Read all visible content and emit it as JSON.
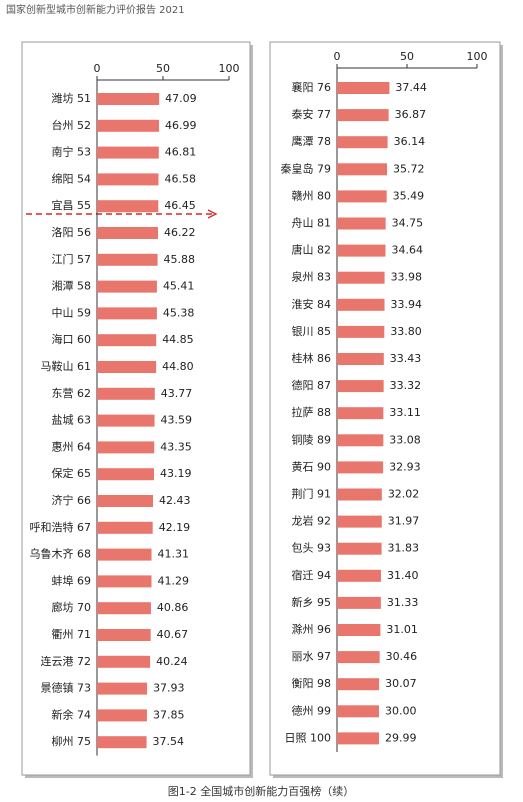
{
  "header": "国家创新型城市创新能力评价报告 2021",
  "caption": "图1-2   全国城市创新能力百强榜（续）",
  "chart_data": [
    {
      "type": "bar",
      "orientation": "horizontal",
      "color": "#e8766c",
      "categories": [
        "潍坊 51",
        "台州 52",
        "南宁 53",
        "绵阳 54",
        "宜昌 55",
        "洛阳 56",
        "江门 57",
        "湘潭 58",
        "中山 59",
        "海口 60",
        "马鞍山 61",
        "东营 62",
        "盐城 63",
        "惠州 64",
        "保定 65",
        "济宁 66",
        "呼和浩特 67",
        "乌鲁木齐 68",
        "蚌埠 69",
        "廊坊 70",
        "衢州 71",
        "连云港 72",
        "景德镇 73",
        "新余 74",
        "柳州 75"
      ],
      "values": [
        47.09,
        46.99,
        46.81,
        46.58,
        46.45,
        46.22,
        45.88,
        45.41,
        45.38,
        44.85,
        44.8,
        43.77,
        43.59,
        43.35,
        43.19,
        42.43,
        42.19,
        41.31,
        41.29,
        40.86,
        40.67,
        40.24,
        37.93,
        37.85,
        37.54
      ],
      "value_labels": [
        "47.09",
        "46.99",
        "46.81",
        "46.58",
        "46.45",
        "46.22",
        "45.88",
        "45.41",
        "45.38",
        "44.85",
        "44.80",
        "43.77",
        "43.59",
        "43.35",
        "43.19",
        "42.43",
        "42.19",
        "41.31",
        "41.29",
        "40.86",
        "40.67",
        "40.24",
        "37.93",
        "37.85",
        "37.54"
      ],
      "xlim": [
        0,
        100
      ],
      "xticks": [
        0,
        50,
        100
      ]
    },
    {
      "type": "bar",
      "orientation": "horizontal",
      "color": "#e8766c",
      "categories": [
        "襄阳 76",
        "泰安 77",
        "鹰潭 78",
        "秦皇岛 79",
        "赣州 80",
        "舟山 81",
        "唐山 82",
        "泉州 83",
        "淮安 84",
        "银川 85",
        "桂林 86",
        "德阳 87",
        "拉萨 88",
        "铜陵 89",
        "黄石 90",
        "荆门 91",
        "龙岩 92",
        "包头 93",
        "宿迁 94",
        "新乡 95",
        "滁州 96",
        "丽水 97",
        "衡阳 98",
        "德州 99",
        "日照 100"
      ],
      "values": [
        37.44,
        36.87,
        36.14,
        35.72,
        35.49,
        34.75,
        34.64,
        33.98,
        33.94,
        33.8,
        33.43,
        33.32,
        33.11,
        33.08,
        32.93,
        32.02,
        31.97,
        31.83,
        31.4,
        31.33,
        31.01,
        30.46,
        30.07,
        30.0,
        29.99
      ],
      "value_labels": [
        "37.44",
        "36.87",
        "36.14",
        "35.72",
        "35.49",
        "34.75",
        "34.64",
        "33.98",
        "33.94",
        "33.80",
        "33.43",
        "33.32",
        "33.11",
        "33.08",
        "32.93",
        "32.02",
        "31.97",
        "31.83",
        "31.40",
        "31.33",
        "31.01",
        "30.46",
        "30.07",
        "30.00",
        "29.99"
      ],
      "xlim": [
        0,
        100
      ],
      "xticks": [
        0,
        50,
        100
      ]
    }
  ]
}
